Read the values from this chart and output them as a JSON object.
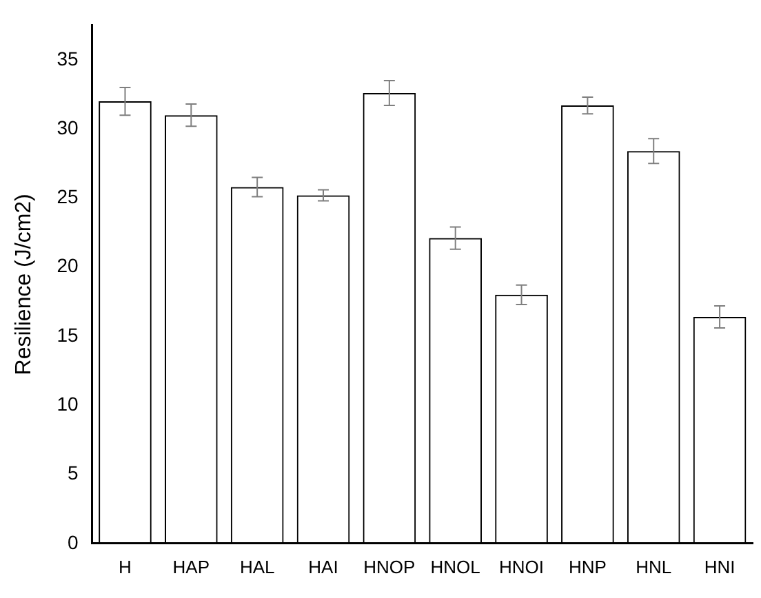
{
  "chart_data": {
    "type": "bar",
    "ylabel": "Resilience (J/cm2)",
    "categories": [
      "H",
      "HAP",
      "HAL",
      "HAI",
      "HNOP",
      "HNOL",
      "HNOI",
      "HNP",
      "HNL",
      "HNI"
    ],
    "values": [
      32.0,
      31.0,
      25.8,
      25.2,
      32.6,
      22.1,
      18.0,
      31.7,
      28.4,
      16.4
    ],
    "errors": [
      1.0,
      0.8,
      0.7,
      0.4,
      0.9,
      0.8,
      0.7,
      0.6,
      0.9,
      0.8
    ],
    "color": "#000000",
    "ylim": [
      0,
      37.5
    ],
    "yticks": [
      0,
      5,
      10,
      15,
      20,
      25,
      30,
      35
    ],
    "grid": false,
    "legend": false
  }
}
